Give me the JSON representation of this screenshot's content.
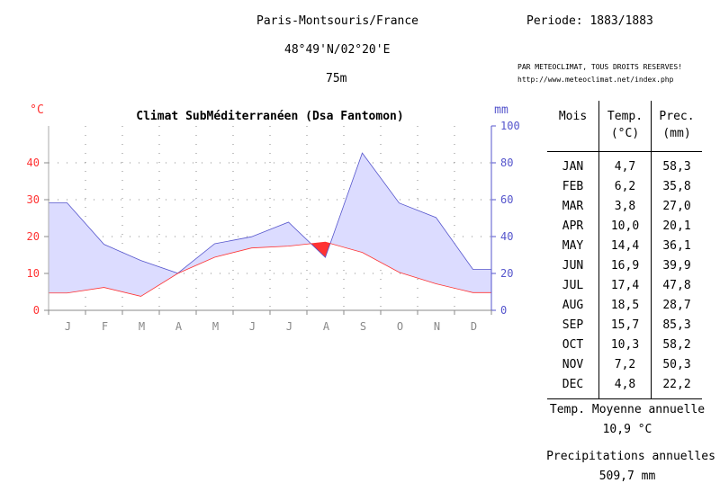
{
  "header": {
    "station": "Paris-Montsouris/France",
    "period": "Periode: 1883/1883",
    "coords": "48°49'N/02°20'E",
    "altitude": "75m",
    "copyright_line1": "PAR METEOCLIMAT, TOUS DROITS RESERVES!",
    "copyright_line2": "http://www.meteoclimat.net/index.php"
  },
  "table": {
    "headers": [
      "Mois",
      "Temp.\n(°C)",
      "Prec.\n(mm)"
    ],
    "rows": [
      [
        "JAN",
        "4,7",
        "58,3"
      ],
      [
        "FEB",
        "6,2",
        "35,8"
      ],
      [
        "MAR",
        "3,8",
        "27,0"
      ],
      [
        "APR",
        "10,0",
        "20,1"
      ],
      [
        "MAY",
        "14,4",
        "36,1"
      ],
      [
        "JUN",
        "16,9",
        "39,9"
      ],
      [
        "JUL",
        "17,4",
        "47,8"
      ],
      [
        "AUG",
        "18,5",
        "28,7"
      ],
      [
        "SEP",
        "15,7",
        "85,3"
      ],
      [
        "OCT",
        "10,3",
        "58,2"
      ],
      [
        "NOV",
        "7,2",
        "50,3"
      ],
      [
        "DEC",
        "4,8",
        "22,2"
      ]
    ]
  },
  "summary": {
    "temp_label": "Temp. Moyenne annuelle",
    "temp_value": "10,9 °C",
    "precip_label": "Precipitations annuelles",
    "precip_value": "509,7 mm"
  },
  "colors": {
    "temp": "#ff3333",
    "precip": "#5555cc",
    "precip_fill": "#dcdcff",
    "grid": "#888888",
    "dry": "#ff3333"
  },
  "chart_data": {
    "type": "area",
    "title": "Climat SubMéditerranéen (Dsa Fantomon)",
    "y_left_unit": "°C",
    "y_right_unit": "mm",
    "categories": [
      "J",
      "F",
      "M",
      "A",
      "M",
      "J",
      "J",
      "A",
      "S",
      "O",
      "N",
      "D"
    ],
    "y_left_ticks": [
      "0",
      "10",
      "20",
      "30",
      "40"
    ],
    "y_right_ticks": [
      "0",
      "20",
      "40",
      "60",
      "80",
      "100"
    ],
    "y_left_range": [
      0,
      50
    ],
    "y_right_range": [
      0,
      100
    ],
    "grid": true,
    "series": [
      {
        "name": "Temp.",
        "axis": "left",
        "values": [
          4.7,
          6.2,
          3.8,
          10.0,
          14.4,
          16.9,
          17.4,
          18.5,
          15.7,
          10.3,
          7.2,
          4.8
        ]
      },
      {
        "name": "Prec.",
        "axis": "right",
        "values": [
          58.3,
          35.8,
          27.0,
          20.1,
          36.1,
          39.9,
          47.8,
          28.7,
          85.3,
          58.2,
          50.3,
          22.2
        ]
      }
    ]
  }
}
